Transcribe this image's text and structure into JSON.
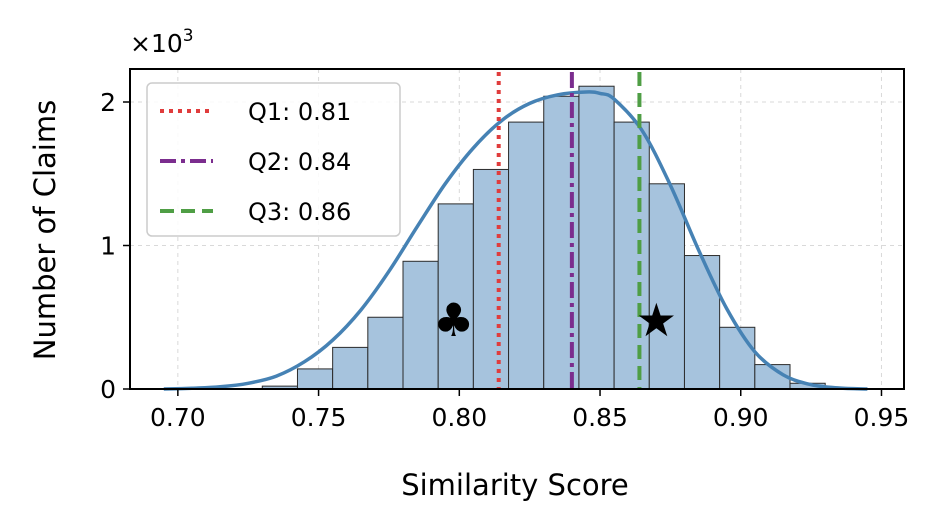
{
  "chart_data": {
    "type": "bar",
    "subtype": "histogram-with-kde",
    "xlabel": "Similarity Score",
    "ylabel": "Number of Claims",
    "y_scale_label": "×10",
    "y_scale_exponent": "3",
    "xlim": [
      0.683,
      0.958
    ],
    "ylim": [
      0,
      2.23
    ],
    "x_ticks": [
      0.7,
      0.75,
      0.8,
      0.85,
      0.9,
      0.95
    ],
    "x_tick_labels": [
      "0.70",
      "0.75",
      "0.80",
      "0.85",
      "0.90",
      "0.95"
    ],
    "y_ticks": [
      0,
      1,
      2
    ],
    "y_tick_labels": [
      "0",
      "1",
      "2"
    ],
    "grid": true,
    "bin_width": 0.0125,
    "bins": [
      {
        "start": 0.73,
        "end": 0.7425,
        "value": 0.02
      },
      {
        "start": 0.7425,
        "end": 0.755,
        "value": 0.14
      },
      {
        "start": 0.755,
        "end": 0.7675,
        "value": 0.29
      },
      {
        "start": 0.7675,
        "end": 0.78,
        "value": 0.5
      },
      {
        "start": 0.78,
        "end": 0.7925,
        "value": 0.89
      },
      {
        "start": 0.7925,
        "end": 0.805,
        "value": 1.29
      },
      {
        "start": 0.805,
        "end": 0.8175,
        "value": 1.53
      },
      {
        "start": 0.8175,
        "end": 0.83,
        "value": 1.86
      },
      {
        "start": 0.83,
        "end": 0.8425,
        "value": 2.04
      },
      {
        "start": 0.8425,
        "end": 0.855,
        "value": 2.11
      },
      {
        "start": 0.855,
        "end": 0.8675,
        "value": 1.86
      },
      {
        "start": 0.8675,
        "end": 0.88,
        "value": 1.43
      },
      {
        "start": 0.88,
        "end": 0.8925,
        "value": 0.93
      },
      {
        "start": 0.8925,
        "end": 0.905,
        "value": 0.43
      },
      {
        "start": 0.905,
        "end": 0.9175,
        "value": 0.17
      },
      {
        "start": 0.9175,
        "end": 0.93,
        "value": 0.04
      }
    ],
    "kde": {
      "x": [
        0.695,
        0.705,
        0.715,
        0.725,
        0.735,
        0.745,
        0.755,
        0.765,
        0.775,
        0.785,
        0.795,
        0.805,
        0.815,
        0.825,
        0.835,
        0.845,
        0.85,
        0.855,
        0.865,
        0.875,
        0.885,
        0.895,
        0.905,
        0.915,
        0.925,
        0.935,
        0.945
      ],
      "y": [
        0.0,
        0.005,
        0.015,
        0.04,
        0.09,
        0.19,
        0.34,
        0.55,
        0.82,
        1.13,
        1.43,
        1.68,
        1.87,
        1.99,
        2.05,
        2.07,
        2.06,
        2.02,
        1.8,
        1.42,
        0.97,
        0.56,
        0.26,
        0.1,
        0.03,
        0.007,
        0.0
      ]
    },
    "reference_lines": [
      {
        "name": "Q1: 0.81",
        "x": 0.814,
        "color": "#e03c3c",
        "style": "dotted"
      },
      {
        "name": "Q2: 0.84",
        "x": 0.84,
        "color": "#7b2d8e",
        "style": "dashdot"
      },
      {
        "name": "Q3: 0.86",
        "x": 0.864,
        "color": "#4f9e45",
        "style": "dashed"
      }
    ],
    "markers": [
      {
        "symbol": "club",
        "glyph": "♣",
        "x": 0.798,
        "y": 0.48
      },
      {
        "symbol": "star",
        "glyph": "★",
        "x": 0.87,
        "y": 0.48
      }
    ],
    "colors": {
      "bar_fill": "#a6c3dd",
      "bar_edge": "#2b2b2b",
      "kde_line": "#4682b4"
    },
    "legend": {
      "position": "top-left",
      "entries": [
        "Q1: 0.81",
        "Q2: 0.84",
        "Q3: 0.86"
      ]
    }
  }
}
